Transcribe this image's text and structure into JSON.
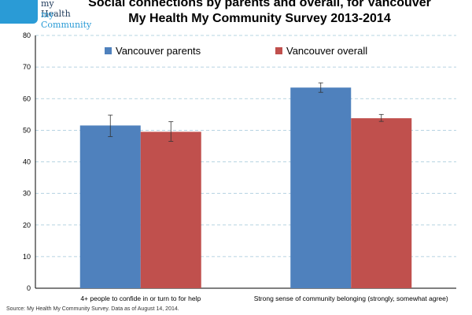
{
  "logo": {
    "line1": "my Health",
    "line2": "my Community",
    "icon": "heart-cityscape-icon"
  },
  "title": {
    "line1": "Social connections by parents and overall, for Vancouver",
    "line2": "My Health My Community Survey 2013-2014"
  },
  "source": "Source: My Health My Community Survey. Data as of August 14, 2014.",
  "chart_data": {
    "type": "bar",
    "categories": [
      "4+ people to confide in or turn to for help",
      "Strong sense of community belonging (strongly, somewhat agree)"
    ],
    "series": [
      {
        "name": "Vancouver parents",
        "color": "#4f81bd",
        "values": [
          51.5,
          63.5
        ],
        "error_low": [
          48.0,
          62.0
        ],
        "error_high": [
          54.8,
          65.0
        ]
      },
      {
        "name": "Vancouver overall",
        "color": "#c0504d",
        "values": [
          49.5,
          53.8
        ],
        "error_low": [
          46.5,
          52.8
        ],
        "error_high": [
          52.7,
          55.0
        ]
      }
    ],
    "ylim": [
      0,
      80
    ],
    "yticks": [
      0,
      10,
      20,
      30,
      40,
      50,
      60,
      70,
      80
    ],
    "grid": true,
    "legend": "top"
  }
}
